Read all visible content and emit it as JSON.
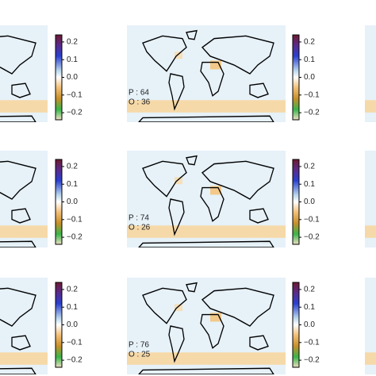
{
  "colorbar": {
    "lim": [
      -0.24,
      0.24
    ],
    "ticks": [
      0.2,
      0.1,
      {
        "value": 0,
        "label": "0.0"
      },
      {
        "value": -0.1,
        "label": "−0.1"
      },
      {
        "value": -0.2,
        "label": "−0.2"
      }
    ]
  },
  "panels": [
    {
      "p": "P : 64",
      "o": "O : 36"
    },
    {
      "p": "P : 74",
      "o": "O : 26"
    },
    {
      "p": "P : 76",
      "o": "O : 25"
    }
  ]
}
